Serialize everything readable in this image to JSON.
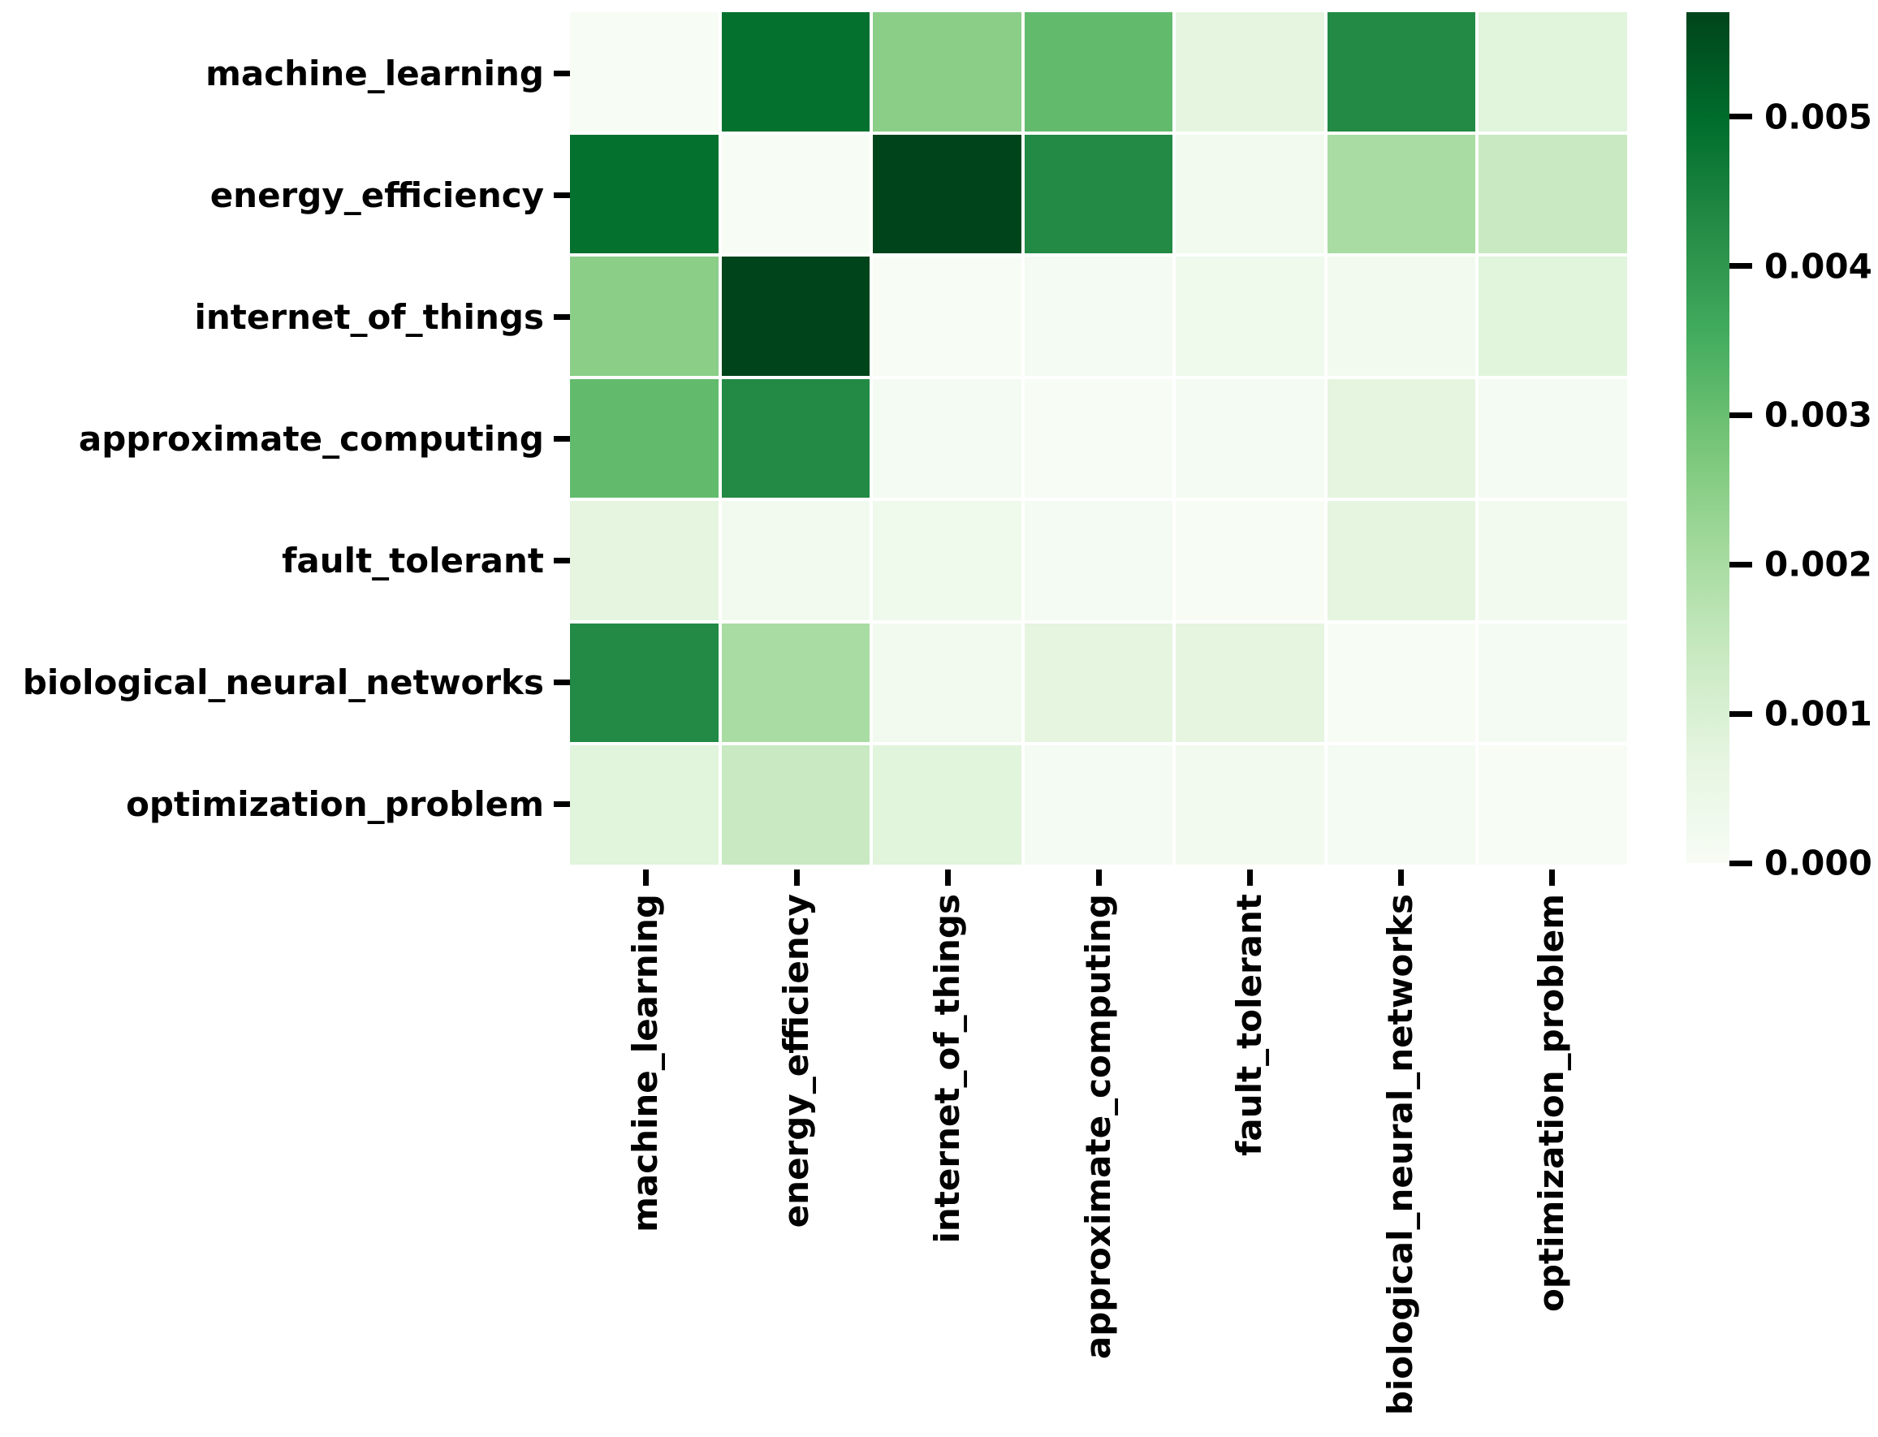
{
  "figure": {
    "background": "#ffffff",
    "text_color": "#000000"
  },
  "chart_data": {
    "type": "heatmap",
    "title": "",
    "xlabel": "",
    "ylabel": "",
    "grid": false,
    "legend_position": "right-colorbar",
    "categories": [
      "machine_learning",
      "energy_efficiency",
      "internet_of_things",
      "approximate_computing",
      "fault_tolerant",
      "biological_neural_networks",
      "optimization_problem"
    ],
    "x_tick_labels": [
      "machine_learning",
      "energy_efficiency",
      "internet_of_things",
      "approximate_computing",
      "fault_tolerant",
      "biological_neural_networks",
      "optimization_problem"
    ],
    "y_tick_labels": [
      "machine_learning",
      "energy_efficiency",
      "internet_of_things",
      "approximate_computing",
      "fault_tolerant",
      "biological_neural_networks",
      "optimization_problem"
    ],
    "matrix": [
      [
        0.0,
        0.0049,
        0.0025,
        0.0031,
        0.0007,
        0.0043,
        0.0008
      ],
      [
        0.0049,
        0.0,
        0.0057,
        0.0043,
        0.0002,
        0.002,
        0.0014
      ],
      [
        0.0025,
        0.0057,
        0.0,
        0.0001,
        0.0003,
        0.0002,
        0.0008
      ],
      [
        0.0031,
        0.0043,
        0.0001,
        0.0,
        0.0001,
        0.0007,
        0.0001
      ],
      [
        0.0007,
        0.0002,
        0.0003,
        0.0001,
        0.0,
        0.0007,
        0.0002
      ],
      [
        0.0043,
        0.002,
        0.0002,
        0.0007,
        0.0007,
        0.0,
        0.0001
      ],
      [
        0.0008,
        0.0014,
        0.0008,
        0.0001,
        0.0002,
        0.0001,
        0.0
      ]
    ],
    "vmin": 0.0,
    "vmax": 0.0057,
    "colormap": "Greens",
    "colormap_stops": [
      {
        "pos": 0.0,
        "color": "#f7fcf5"
      },
      {
        "pos": 0.125,
        "color": "#e5f5e0"
      },
      {
        "pos": 0.25,
        "color": "#c7e9c0"
      },
      {
        "pos": 0.375,
        "color": "#a1d99b"
      },
      {
        "pos": 0.5,
        "color": "#74c476"
      },
      {
        "pos": 0.625,
        "color": "#41ab5d"
      },
      {
        "pos": 0.75,
        "color": "#238b45"
      },
      {
        "pos": 0.875,
        "color": "#006d2c"
      },
      {
        "pos": 1.0,
        "color": "#00441b"
      }
    ],
    "cell_gap_color": "#ffffff",
    "colorbar": {
      "ticks": [
        0.0,
        0.001,
        0.002,
        0.003,
        0.004,
        0.005
      ],
      "tick_labels": [
        "0.000",
        "0.001",
        "0.002",
        "0.003",
        "0.004",
        "0.005"
      ],
      "decimals": 3
    }
  }
}
